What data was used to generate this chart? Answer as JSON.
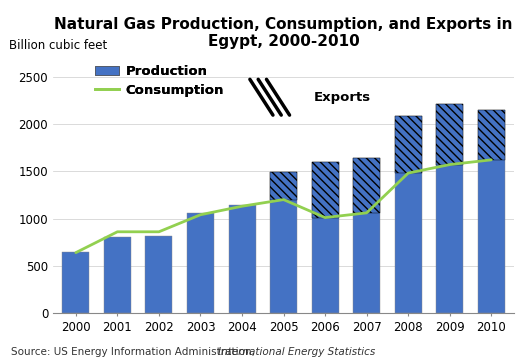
{
  "title": "Natural Gas Production, Consumption, and Exports in\nEgypt, 2000-2010",
  "ylabel": "Billion cubic feet",
  "source_plain": "Source: US Energy Information Administration, ",
  "source_italic": "International Energy Statistics",
  "years": [
    2000,
    2001,
    2002,
    2003,
    2004,
    2005,
    2006,
    2007,
    2008,
    2009,
    2010
  ],
  "production": [
    650,
    800,
    820,
    1060,
    1140,
    1490,
    1600,
    1640,
    2080,
    2210,
    2150
  ],
  "consumption": [
    640,
    860,
    860,
    1040,
    1130,
    1200,
    1010,
    1060,
    1480,
    1570,
    1620
  ],
  "exports": [
    0,
    0,
    0,
    0,
    0,
    290,
    590,
    580,
    600,
    640,
    530
  ],
  "bar_color": "#4472C4",
  "hatch_color": "#000000",
  "line_color": "#92D050",
  "ylim": [
    0,
    2700
  ],
  "yticks": [
    0,
    500,
    1000,
    1500,
    2000,
    2500
  ],
  "bg_color": "#FFFFFF",
  "title_fontsize": 11,
  "label_fontsize": 8.5,
  "tick_fontsize": 8.5,
  "source_fontsize": 7.5,
  "legend_fontsize": 9.5
}
